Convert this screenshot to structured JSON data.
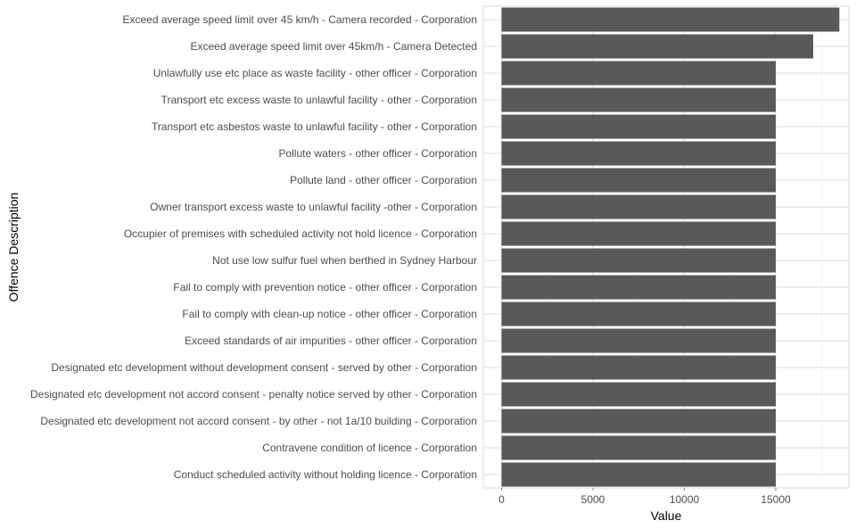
{
  "chart_data": {
    "type": "bar",
    "orientation": "horizontal",
    "xlabel": "Value",
    "ylabel": "Offence Description",
    "xlim": [
      -1000,
      19000
    ],
    "xticks": [
      0,
      5000,
      10000,
      15000
    ],
    "grid": true,
    "bar_color": "#595959",
    "categories": [
      "Exceed average speed limit over 45 km/h - Camera recorded - Corporation",
      "Exceed average speed limit over 45km/h - Camera Detected",
      "Unlawfully use etc place as waste facility - other officer - Corporation",
      "Transport etc excess waste to unlawful facility - other - Corporation",
      "Transport etc asbestos waste to unlawful facility - other - Corporation",
      "Pollute waters - other officer - Corporation",
      "Pollute land - other officer - Corporation",
      "Owner transport excess waste to unlawful facility -other - Corporation",
      "Occupier of premises with scheduled activity not hold licence - Corporation",
      "Not use low sulfur fuel when berthed in Sydney Harbour",
      "Fail to comply with prevention notice - other officer - Corporation",
      "Fail to comply with clean-up notice - other officer - Corporation",
      "Exceed standards of air impurities - other officer - Corporation",
      "Designated etc development without development consent - served by other - Corporation",
      "Designated etc development not accord consent - penalty notice served by other - Corporation",
      "Designated etc development not accord consent - by other - not 1a/10 building - Corporation",
      "Contravene condition of licence - Corporation",
      "Conduct scheduled activity without holding licence - Corporation"
    ],
    "values": [
      18480,
      17050,
      15000,
      15000,
      15000,
      15000,
      15000,
      15000,
      15000,
      15000,
      15000,
      15000,
      15000,
      15000,
      15000,
      15000,
      15000,
      15000
    ]
  }
}
